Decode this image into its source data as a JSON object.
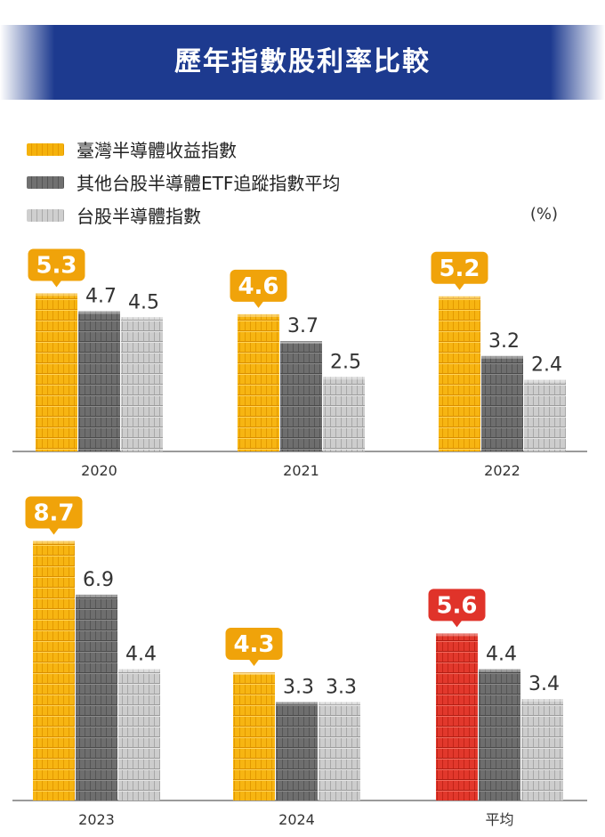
{
  "title": "歷年指數股利率比較",
  "unit": "(%)",
  "legend": [
    {
      "label": "臺灣半導體收益指數",
      "color": "#f5b20c"
    },
    {
      "label": "其他台股半導體ETF追蹤指數平均",
      "color": "#6a6a6a"
    },
    {
      "label": "台股半導體指數",
      "color": "#c4c4c4"
    }
  ],
  "colors": {
    "highlight": "#f0a30a",
    "average_highlight": "#e0332a",
    "header": "#1d3a8f"
  },
  "chart_data": {
    "type": "bar",
    "categories": [
      "2020",
      "2021",
      "2022",
      "2023",
      "2024",
      "平均"
    ],
    "series": [
      {
        "name": "臺灣半導體收益指數",
        "values": [
          5.3,
          4.6,
          5.2,
          8.7,
          4.3,
          5.6
        ]
      },
      {
        "name": "其他台股半導體ETF追蹤指數平均",
        "values": [
          4.7,
          3.7,
          3.2,
          6.9,
          3.3,
          4.4
        ]
      },
      {
        "name": "台股半導體指數",
        "values": [
          4.5,
          2.5,
          2.4,
          4.4,
          3.3,
          3.4
        ]
      }
    ],
    "ylabel": "(%)"
  }
}
